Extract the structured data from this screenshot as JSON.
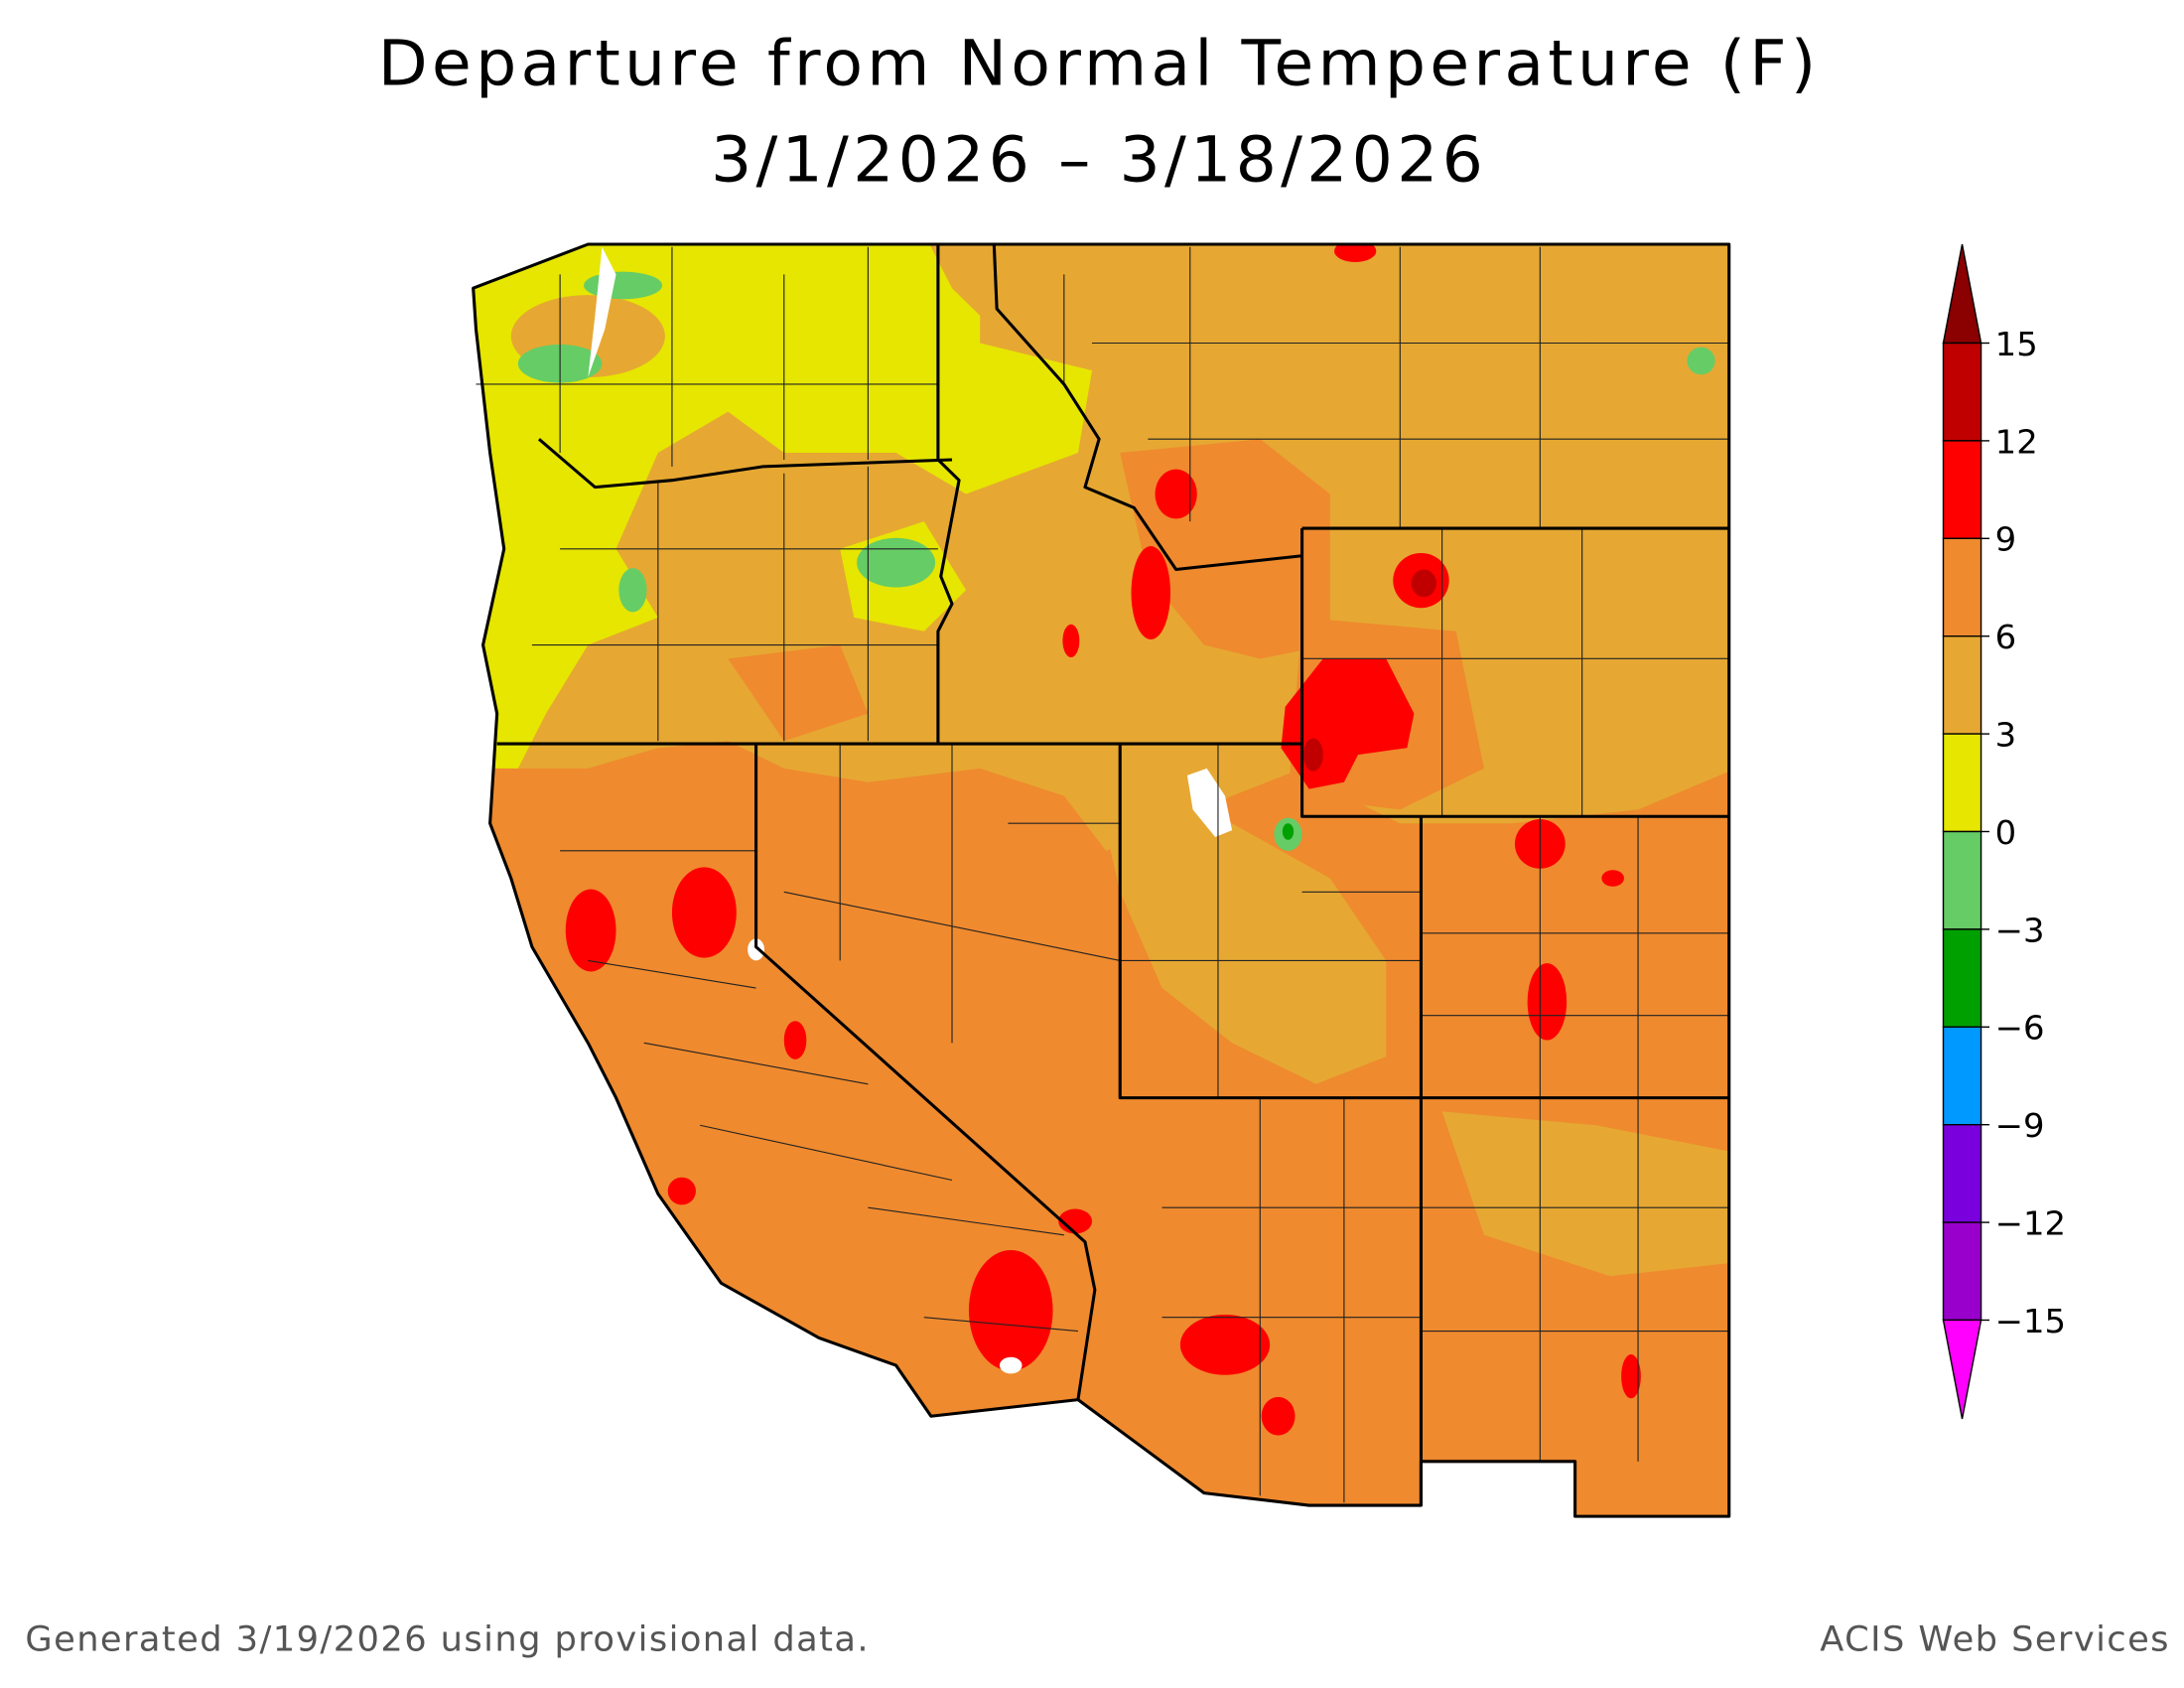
{
  "header": {
    "title": "Departure from Normal Temperature (F)",
    "subtitle": "3/1/2026 – 3/18/2026"
  },
  "legend": {
    "ticks": [
      15,
      12,
      9,
      6,
      3,
      0,
      {
        "value": -3,
        "label": "−3"
      },
      {
        "value": -6,
        "label": "−6"
      },
      {
        "value": -9,
        "label": "−9"
      },
      {
        "value": -12,
        "label": "−12"
      },
      {
        "value": -15,
        "label": "−15"
      }
    ],
    "colors": [
      "#8b0000",
      "#c00000",
      "#ff0000",
      "#ef8a2e",
      "#e6a832",
      "#e6e600",
      "#66cc66",
      "#00a000",
      "#0099ff",
      "#7a00dd",
      "#9900cc",
      "#ff00ff"
    ]
  },
  "footer": {
    "left": "Generated 3/19/2026 using provisional data.",
    "right": "ACIS Web Services"
  }
}
